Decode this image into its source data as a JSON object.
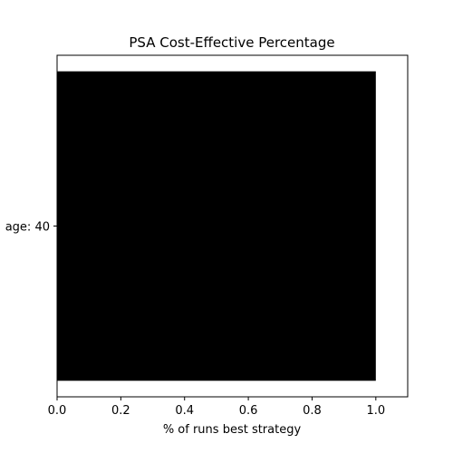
{
  "chart_data": {
    "type": "bar",
    "orientation": "horizontal",
    "title": "PSA Cost-Effective Percentage",
    "xlabel": "% of runs best strategy",
    "ylabel": "",
    "categories": [
      "age: 40"
    ],
    "values": [
      1.0
    ],
    "xlim": [
      0.0,
      1.1
    ],
    "xticks": [
      "0.0",
      "0.2",
      "0.4",
      "0.6",
      "0.8",
      "1.0"
    ],
    "bar_color": "#000000",
    "grid": false,
    "legend": "none"
  }
}
